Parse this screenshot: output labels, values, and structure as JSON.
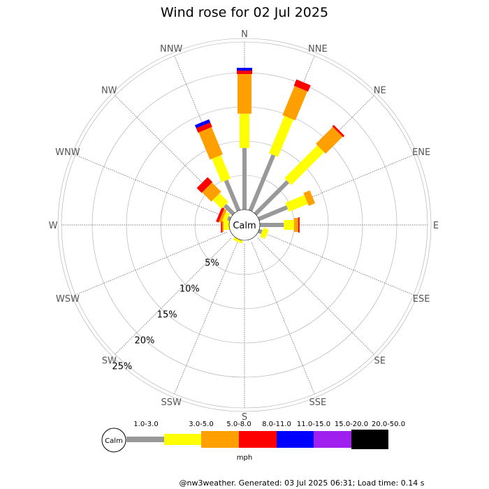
{
  "chart_data": {
    "type": "wind-rose",
    "title": "Wind rose for 02 Jul 2025",
    "directions": [
      "N",
      "NNE",
      "NE",
      "ENE",
      "E",
      "ESE",
      "SE",
      "SSE",
      "S",
      "SSW",
      "SW",
      "WSW",
      "W",
      "WNW",
      "NW",
      "NNW"
    ],
    "ring_labels": [
      "5%",
      "10%",
      "15%",
      "20%",
      "25%"
    ],
    "ring_values": [
      5,
      10,
      15,
      20,
      25
    ],
    "calm_label": "Calm",
    "speed_unit": "mph",
    "speed_bins": [
      {
        "label": "1.0-3.0",
        "color": "#999999"
      },
      {
        "label": "3.0-5.0",
        "color": "#ffff00"
      },
      {
        "label": "5.0-8.0",
        "color": "#ffa000"
      },
      {
        "label": "8.0-11.0",
        "color": "#ff0000"
      },
      {
        "label": "11.0-15.0",
        "color": "#0000ff"
      },
      {
        "label": "15.0-20.0",
        "color": "#a020f0"
      },
      {
        "label": "20.0-50.0",
        "color": "#000000"
      }
    ],
    "cumulative_percent": {
      "N": [
        9.0,
        14.0,
        19.8,
        20.3,
        20.7,
        20.7,
        20.7
      ],
      "NNE": [
        8.8,
        14.7,
        19.3,
        20.3,
        20.3,
        20.3,
        20.3
      ],
      "NE": [
        6.7,
        13.5,
        17.0,
        17.3,
        17.3,
        17.3,
        17.3
      ],
      "ENE": [
        4.5,
        7.5,
        8.5,
        8.5,
        8.5,
        8.5,
        8.5
      ],
      "E": [
        3.5,
        5.0,
        5.6,
        5.8,
        5.8,
        5.8,
        5.8
      ],
      "ESE": [
        0.5,
        1.3,
        1.3,
        1.3,
        1.3,
        1.3,
        1.3
      ],
      "SE": [
        0.0,
        0.0,
        0.0,
        0.0,
        0.0,
        0.0,
        0.0
      ],
      "SSE": [
        0.0,
        0.0,
        0.0,
        0.0,
        0.0,
        0.0,
        0.0
      ],
      "S": [
        0.0,
        0.0,
        0.0,
        0.0,
        0.0,
        0.0,
        0.0
      ],
      "SSW": [
        0.0,
        0.4,
        0.4,
        0.4,
        0.4,
        0.4,
        0.4
      ],
      "SW": [
        0.0,
        0.0,
        0.0,
        0.0,
        0.0,
        0.0,
        0.0
      ],
      "WSW": [
        0.0,
        0.0,
        0.0,
        0.0,
        0.0,
        0.0,
        0.0
      ],
      "W": [
        0.0,
        0.8,
        1.0,
        1.2,
        1.2,
        1.2,
        1.2
      ],
      "WNW": [
        0.4,
        1.0,
        1.4,
        1.8,
        1.8,
        1.8,
        1.8
      ],
      "NW": [
        1.8,
        3.6,
        5.5,
        6.5,
        6.5,
        6.5,
        6.5
      ],
      "NNW": [
        4.8,
        8.5,
        12.8,
        13.5,
        14.0,
        14.0,
        14.0
      ]
    }
  },
  "footer": "@nw3weather. Generated: 03 Jul 2025 06:31; Load time: 0.14 s"
}
